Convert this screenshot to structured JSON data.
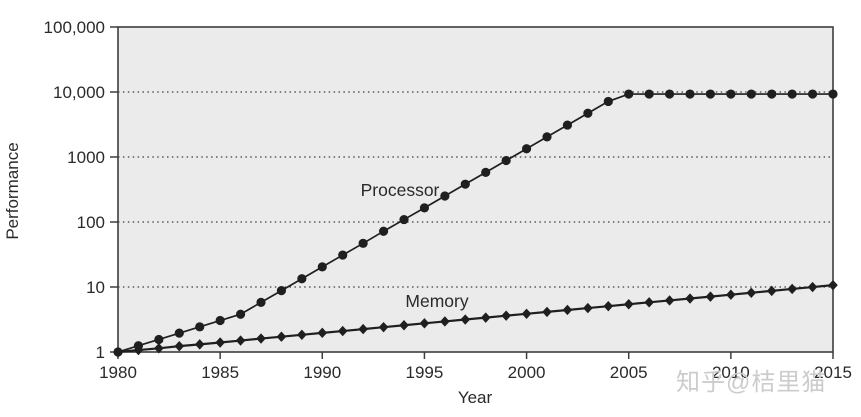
{
  "watermark": {
    "text": "知乎@桔里猫",
    "color": "#cccccc"
  },
  "chart_data": {
    "type": "line",
    "title": "",
    "xlabel": "Year",
    "ylabel": "Performance",
    "y_scale": "log",
    "xlim": [
      1980,
      2015
    ],
    "ylim": [
      1,
      100000
    ],
    "x_ticks": [
      1980,
      1985,
      1990,
      1995,
      2000,
      2005,
      2010,
      2015
    ],
    "x_tick_labels": [
      "1980",
      "1985",
      "1990",
      "1995",
      "2000",
      "2005",
      "2010",
      "2015"
    ],
    "y_ticks": [
      1,
      10,
      100,
      1000,
      10000,
      100000
    ],
    "y_tick_labels": [
      "1",
      "10",
      "100",
      "1000",
      "10,000",
      "100,000"
    ],
    "gridlines": [
      10,
      100,
      1000,
      10000
    ],
    "grid_style": "dotted",
    "legend_position": "inline-labels",
    "colors": {
      "plot_bg": "#ebebeb",
      "axis": "#3d3d3d",
      "grid": "#3c3c3c",
      "series": "#1f1f1f"
    },
    "x": [
      1980,
      1981,
      1982,
      1983,
      1984,
      1985,
      1986,
      1987,
      1988,
      1989,
      1990,
      1991,
      1992,
      1993,
      1994,
      1995,
      1996,
      1997,
      1998,
      1999,
      2000,
      2001,
      2002,
      2003,
      2004,
      2005,
      2006,
      2007,
      2008,
      2009,
      2010,
      2011,
      2012,
      2013,
      2014,
      2015
    ],
    "series": [
      {
        "name": "Processor",
        "marker": "circle",
        "color": "#1f1f1f",
        "values": [
          1,
          1.25,
          1.56,
          1.95,
          2.44,
          3.05,
          3.81,
          5.8,
          8.8,
          13.4,
          20.4,
          31,
          47,
          72,
          109,
          165,
          251,
          382,
          580,
          882,
          1341,
          2038,
          3098,
          4709,
          7158,
          9300,
          9300,
          9300,
          9300,
          9300,
          9300,
          9300,
          9300,
          9300,
          9300,
          9300
        ]
      },
      {
        "name": "Memory",
        "marker": "diamond",
        "color": "#1f1f1f",
        "values": [
          1,
          1.07,
          1.14,
          1.23,
          1.31,
          1.4,
          1.5,
          1.61,
          1.72,
          1.84,
          1.97,
          2.1,
          2.25,
          2.41,
          2.58,
          2.76,
          2.95,
          3.16,
          3.38,
          3.62,
          3.87,
          4.14,
          4.43,
          4.74,
          5.07,
          5.43,
          5.81,
          6.21,
          6.65,
          7.11,
          7.61,
          8.15,
          8.72,
          9.33,
          9.98,
          10.68
        ]
      }
    ],
    "annotations": [
      {
        "text": "Processor",
        "anchor_year": 1993.8,
        "anchor_value": 310
      },
      {
        "text": "Memory",
        "anchor_year": 1995.6,
        "anchor_value": 6.1
      }
    ]
  }
}
